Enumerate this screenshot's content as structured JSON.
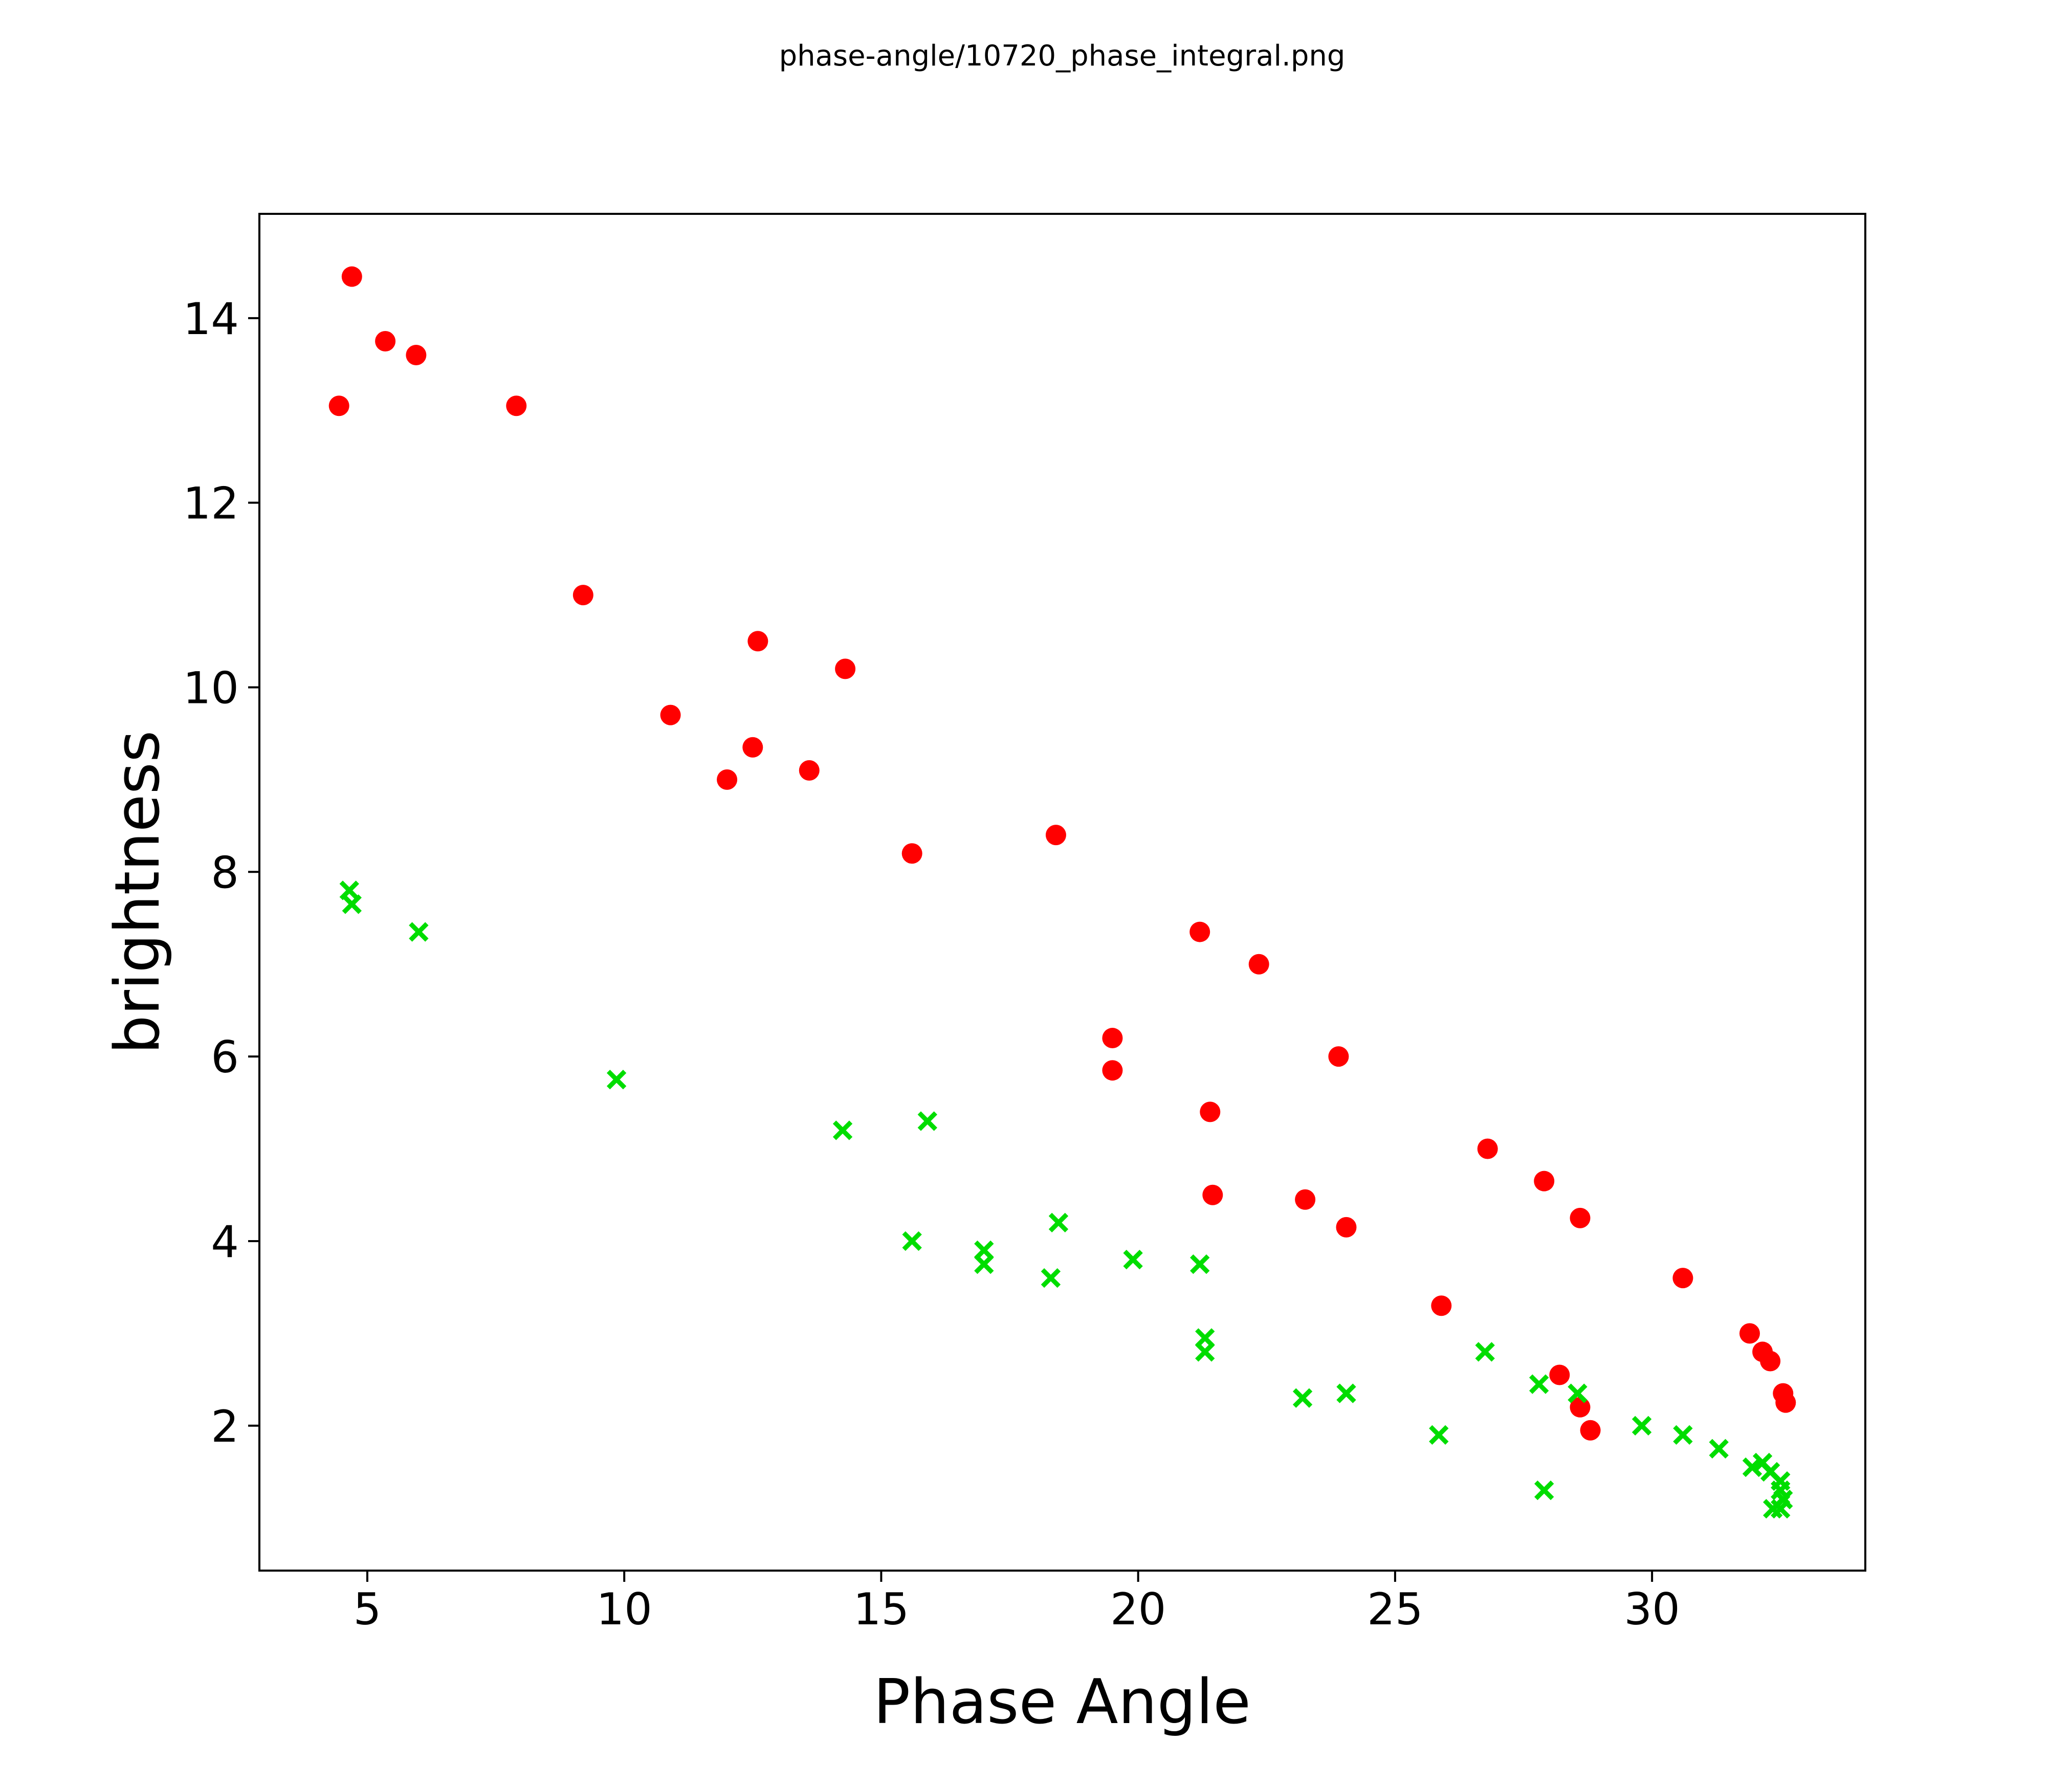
{
  "chart_data": {
    "type": "scatter",
    "title": "phase-angle/10720_phase_integral.png",
    "xlabel": "Phase Angle",
    "ylabel": "brightness",
    "xlim": [
      2.9,
      34.15
    ],
    "ylim": [
      0.43,
      15.13
    ],
    "x_ticks": [
      5,
      10,
      15,
      20,
      25,
      30
    ],
    "y_ticks": [
      2,
      4,
      6,
      8,
      10,
      12,
      14
    ],
    "grid": false,
    "legend": false,
    "background_color": "#ffffff",
    "series": [
      {
        "name": "red dots",
        "marker": "circle",
        "color": "#ff0000",
        "points": [
          [
            4.45,
            13.05
          ],
          [
            4.7,
            14.45
          ],
          [
            5.35,
            13.75
          ],
          [
            5.95,
            13.6
          ],
          [
            7.9,
            13.05
          ],
          [
            9.2,
            11.0
          ],
          [
            10.9,
            9.7
          ],
          [
            12.0,
            9.0
          ],
          [
            12.5,
            9.35
          ],
          [
            12.6,
            10.5
          ],
          [
            13.6,
            9.1
          ],
          [
            14.3,
            10.2
          ],
          [
            15.6,
            8.2
          ],
          [
            18.4,
            8.4
          ],
          [
            19.5,
            6.2
          ],
          [
            19.5,
            5.85
          ],
          [
            21.2,
            7.35
          ],
          [
            21.4,
            5.4
          ],
          [
            21.45,
            4.5
          ],
          [
            22.35,
            7.0
          ],
          [
            23.25,
            4.45
          ],
          [
            23.9,
            6.0
          ],
          [
            24.05,
            4.15
          ],
          [
            25.9,
            3.3
          ],
          [
            26.8,
            5.0
          ],
          [
            27.9,
            4.65
          ],
          [
            28.2,
            2.55
          ],
          [
            28.6,
            4.25
          ],
          [
            28.6,
            2.2
          ],
          [
            28.8,
            1.95
          ],
          [
            30.6,
            3.6
          ],
          [
            31.9,
            3.0
          ],
          [
            32.15,
            2.8
          ],
          [
            32.3,
            2.7
          ],
          [
            32.55,
            2.35
          ],
          [
            32.6,
            2.25
          ]
        ]
      },
      {
        "name": "green crosses",
        "marker": "x",
        "color": "#00dd00",
        "points": [
          [
            4.65,
            7.8
          ],
          [
            4.7,
            7.65
          ],
          [
            6.0,
            7.35
          ],
          [
            9.85,
            5.75
          ],
          [
            14.25,
            5.2
          ],
          [
            15.6,
            4.0
          ],
          [
            15.9,
            5.3
          ],
          [
            17.0,
            3.9
          ],
          [
            17.0,
            3.75
          ],
          [
            18.3,
            3.6
          ],
          [
            18.45,
            4.2
          ],
          [
            19.9,
            3.8
          ],
          [
            21.2,
            3.75
          ],
          [
            21.3,
            2.95
          ],
          [
            21.3,
            2.8
          ],
          [
            23.2,
            2.3
          ],
          [
            24.05,
            2.35
          ],
          [
            25.85,
            1.9
          ],
          [
            26.75,
            2.8
          ],
          [
            27.8,
            2.45
          ],
          [
            27.9,
            1.3
          ],
          [
            28.55,
            2.35
          ],
          [
            29.8,
            2.0
          ],
          [
            30.6,
            1.9
          ],
          [
            31.3,
            1.75
          ],
          [
            31.95,
            1.55
          ],
          [
            32.15,
            1.6
          ],
          [
            32.3,
            1.5
          ],
          [
            32.5,
            1.4
          ],
          [
            32.5,
            1.3
          ],
          [
            32.55,
            1.2
          ],
          [
            32.35,
            1.1
          ],
          [
            32.5,
            1.1
          ]
        ]
      }
    ]
  }
}
